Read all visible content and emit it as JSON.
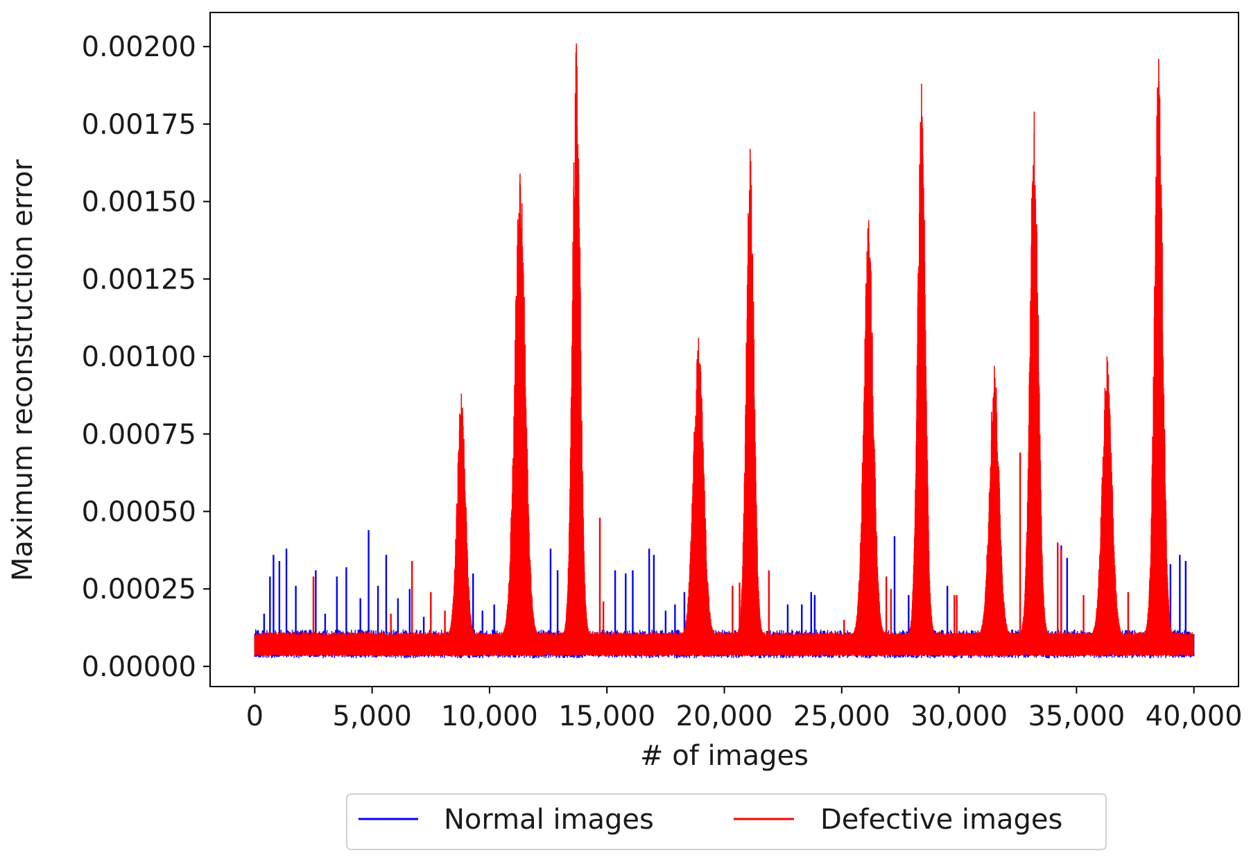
{
  "chart_data": {
    "type": "line",
    "title": "",
    "xlabel": "# of images",
    "ylabel": "Maximum reconstruction error",
    "xlim": [
      -1900,
      41900
    ],
    "ylim": [
      -6.5e-05,
      0.00211
    ],
    "grid": false,
    "legend_position": "bottom-center-outside",
    "x_ticks": [
      0,
      5000,
      10000,
      15000,
      20000,
      25000,
      30000,
      35000,
      40000
    ],
    "x_tick_labels": [
      "0",
      "5,000",
      "10,000",
      "15,000",
      "20,000",
      "25,000",
      "30,000",
      "35,000",
      "40,000"
    ],
    "y_ticks": [
      0,
      0.00025,
      0.0005,
      0.00075,
      0.001,
      0.00125,
      0.0015,
      0.00175,
      0.002
    ],
    "y_tick_labels": [
      "0.00000",
      "0.00025",
      "0.00050",
      "0.00075",
      "0.00100",
      "0.00125",
      "0.00150",
      "0.00175",
      "0.00200"
    ],
    "baseline": {
      "low": 4e-05,
      "high": 0.0001
    },
    "series": [
      {
        "name": "Normal images",
        "color": "#0000ff",
        "spikes": [
          [
            400,
            0.00017
          ],
          [
            650,
            0.00029
          ],
          [
            800,
            0.00036
          ],
          [
            1050,
            0.00034
          ],
          [
            1350,
            0.00038
          ],
          [
            1750,
            0.00026
          ],
          [
            2600,
            0.00031
          ],
          [
            3000,
            0.00017
          ],
          [
            3500,
            0.00029
          ],
          [
            3900,
            0.00032
          ],
          [
            4500,
            0.00022
          ],
          [
            4850,
            0.00044
          ],
          [
            5250,
            0.00026
          ],
          [
            5600,
            0.00036
          ],
          [
            6100,
            0.00022
          ],
          [
            6600,
            0.00025
          ],
          [
            7200,
            0.00016
          ],
          [
            9300,
            0.0003
          ],
          [
            9700,
            0.00018
          ],
          [
            10200,
            0.0002
          ],
          [
            12600,
            0.00038
          ],
          [
            12900,
            0.00031
          ],
          [
            15350,
            0.00031
          ],
          [
            15800,
            0.0003
          ],
          [
            16100,
            0.00031
          ],
          [
            16800,
            0.00038
          ],
          [
            17000,
            0.00036
          ],
          [
            17500,
            0.00018
          ],
          [
            17900,
            0.0002
          ],
          [
            18300,
            0.00024
          ],
          [
            22700,
            0.0002
          ],
          [
            23300,
            0.0002
          ],
          [
            23700,
            0.00024
          ],
          [
            23850,
            0.00023
          ],
          [
            27250,
            0.00042
          ],
          [
            27850,
            0.00023
          ],
          [
            29500,
            0.00026
          ],
          [
            34350,
            0.00039
          ],
          [
            34600,
            0.00035
          ],
          [
            39000,
            0.00033
          ],
          [
            39400,
            0.00036
          ],
          [
            39650,
            0.00034
          ]
        ]
      },
      {
        "name": "Defective images",
        "color": "#ff0000",
        "spikes": [
          [
            2500,
            0.00029
          ],
          [
            5800,
            0.00017
          ],
          [
            6700,
            0.00034
          ],
          [
            7500,
            0.00024
          ],
          [
            8100,
            0.00018
          ],
          [
            9000,
            0.00026
          ],
          [
            14700,
            0.00048
          ],
          [
            14850,
            0.00021
          ],
          [
            20350,
            0.00026
          ],
          [
            20650,
            0.00027
          ],
          [
            21900,
            0.00031
          ],
          [
            25100,
            0.00015
          ],
          [
            26900,
            0.00029
          ],
          [
            27100,
            0.00025
          ],
          [
            29800,
            0.00023
          ],
          [
            29900,
            0.00023
          ],
          [
            32600,
            0.00069
          ],
          [
            34200,
            0.0004
          ],
          [
            34350,
            0.00038
          ],
          [
            35300,
            0.00023
          ],
          [
            37200,
            0.00024
          ]
        ],
        "peaks": [
          {
            "x": 8800,
            "y": 0.00088,
            "w": 700
          },
          {
            "x": 11300,
            "y": 0.00159,
            "w": 900
          },
          {
            "x": 13700,
            "y": 0.00201,
            "w": 650
          },
          {
            "x": 18900,
            "y": 0.00106,
            "w": 850
          },
          {
            "x": 21100,
            "y": 0.00167,
            "w": 650
          },
          {
            "x": 26150,
            "y": 0.00144,
            "w": 800
          },
          {
            "x": 28400,
            "y": 0.00188,
            "w": 650
          },
          {
            "x": 31500,
            "y": 0.00097,
            "w": 800
          },
          {
            "x": 33200,
            "y": 0.00179,
            "w": 700
          },
          {
            "x": 36300,
            "y": 0.001,
            "w": 800
          },
          {
            "x": 38500,
            "y": 0.00196,
            "w": 700
          }
        ]
      }
    ]
  }
}
